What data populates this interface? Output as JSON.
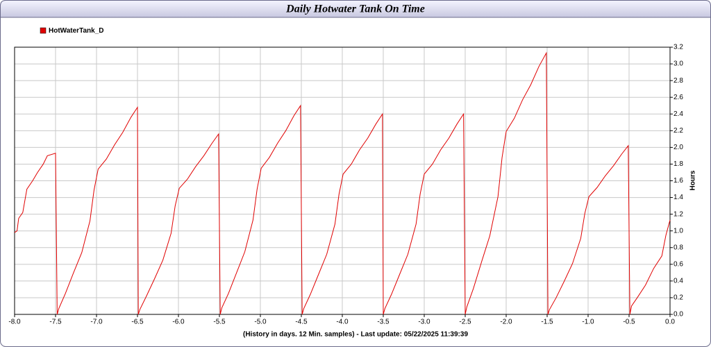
{
  "chart_data": {
    "type": "line",
    "title": "Daily Hotwater Tank On Time",
    "x_label": "(History in days. 12 Min. samples) - Last update: 05/22/2025 11:39:39",
    "y_label": "Hours",
    "xlim": [
      -8,
      0
    ],
    "ylim": [
      0,
      3.2
    ],
    "xticks": [
      {
        "value": -8,
        "label": "-8.0"
      },
      {
        "value": -7.5,
        "label": "-7.5"
      },
      {
        "value": -7,
        "label": "-7.0"
      },
      {
        "value": -6.5,
        "label": "-6.5"
      },
      {
        "value": -6,
        "label": "-6.0"
      },
      {
        "value": -5.5,
        "label": "-5.5"
      },
      {
        "value": -5,
        "label": "-5.0"
      },
      {
        "value": -4.5,
        "label": "-4.5"
      },
      {
        "value": -4,
        "label": "-4.0"
      },
      {
        "value": -3.5,
        "label": "-3.5"
      },
      {
        "value": -3,
        "label": "-3.0"
      },
      {
        "value": -2.5,
        "label": "-2.5"
      },
      {
        "value": -2,
        "label": "-2.0"
      },
      {
        "value": -1.5,
        "label": "-1.5"
      },
      {
        "value": -1,
        "label": "-1.0"
      },
      {
        "value": -0.5,
        "label": "-0.5"
      },
      {
        "value": 0,
        "label": "0.0"
      }
    ],
    "yticks": [
      {
        "value": 0,
        "label": "0.0"
      },
      {
        "value": 0.2,
        "label": "0.2"
      },
      {
        "value": 0.4,
        "label": "0.4"
      },
      {
        "value": 0.6,
        "label": "0.6"
      },
      {
        "value": 0.8,
        "label": "0.8"
      },
      {
        "value": 1,
        "label": "1.0"
      },
      {
        "value": 1.2,
        "label": "1.2"
      },
      {
        "value": 1.4,
        "label": "1.4"
      },
      {
        "value": 1.6,
        "label": "1.6"
      },
      {
        "value": 1.8,
        "label": "1.8"
      },
      {
        "value": 2,
        "label": "2.0"
      },
      {
        "value": 2.2,
        "label": "2.2"
      },
      {
        "value": 2.4,
        "label": "2.4"
      },
      {
        "value": 2.6,
        "label": "2.6"
      },
      {
        "value": 2.8,
        "label": "2.8"
      },
      {
        "value": 3,
        "label": "3.0"
      },
      {
        "value": 3.2,
        "label": "3.2"
      }
    ],
    "grid": true,
    "legend": "top-left",
    "x": [
      -8,
      -7.97,
      -7.95,
      -7.9,
      -7.85,
      -7.78,
      -7.72,
      -7.65,
      -7.6,
      -7.5,
      -7.48,
      -7.46,
      -7.38,
      -7.28,
      -7.18,
      -7.08,
      -7.03,
      -6.98,
      -6.88,
      -6.78,
      -6.68,
      -6.58,
      -6.5,
      -6.49,
      -6.47,
      -6.39,
      -6.29,
      -6.19,
      -6.09,
      -6.04,
      -5.99,
      -5.89,
      -5.79,
      -5.69,
      -5.59,
      -5.51,
      -5.49,
      -5.47,
      -5.39,
      -5.29,
      -5.19,
      -5.09,
      -5.04,
      -4.99,
      -4.89,
      -4.79,
      -4.69,
      -4.59,
      -4.51,
      -4.49,
      -4.47,
      -4.39,
      -4.29,
      -4.19,
      -4.09,
      -4.04,
      -3.99,
      -3.89,
      -3.79,
      -3.69,
      -3.59,
      -3.51,
      -3.5,
      -3.48,
      -3.4,
      -3.3,
      -3.2,
      -3.1,
      -3.05,
      -3,
      -2.9,
      -2.8,
      -2.7,
      -2.6,
      -2.52,
      -2.5,
      -2.48,
      -2.4,
      -2.3,
      -2.2,
      -2.1,
      -2.05,
      -2,
      -1.9,
      -1.8,
      -1.7,
      -1.6,
      -1.51,
      -1.49,
      -1.47,
      -1.39,
      -1.29,
      -1.19,
      -1.09,
      -1.04,
      -0.99,
      -0.89,
      -0.79,
      -0.69,
      -0.59,
      -0.51,
      -0.49,
      -0.47,
      -0.4,
      -0.3,
      -0.2,
      -0.1,
      -0.05,
      0
    ],
    "series": [
      {
        "name": "HotWaterTank_D",
        "color": "#e00000",
        "values": [
          0.98,
          1.0,
          1.15,
          1.22,
          1.5,
          1.6,
          1.7,
          1.8,
          1.9,
          1.93,
          0,
          0.07,
          0.25,
          0.5,
          0.74,
          1.12,
          1.49,
          1.74,
          1.86,
          2.03,
          2.18,
          2.36,
          2.48,
          0,
          0.06,
          0.22,
          0.43,
          0.65,
          0.97,
          1.3,
          1.51,
          1.62,
          1.77,
          1.9,
          2.05,
          2.16,
          0,
          0.08,
          0.25,
          0.5,
          0.75,
          1.13,
          1.5,
          1.75,
          1.88,
          2.05,
          2.2,
          2.38,
          2.5,
          0,
          0.07,
          0.24,
          0.48,
          0.72,
          1.08,
          1.44,
          1.68,
          1.8,
          1.97,
          2.11,
          2.28,
          2.4,
          0,
          0.07,
          0.24,
          0.48,
          0.72,
          1.08,
          1.44,
          1.68,
          1.8,
          1.97,
          2.11,
          2.28,
          2.4,
          0,
          0.09,
          0.31,
          0.63,
          0.94,
          1.41,
          1.88,
          2.19,
          2.35,
          2.57,
          2.75,
          2.97,
          3.13,
          0,
          0.06,
          0.2,
          0.4,
          0.61,
          0.91,
          1.21,
          1.41,
          1.52,
          1.66,
          1.78,
          1.92,
          2.02,
          0,
          0.1,
          0.2,
          0.35,
          0.55,
          0.7,
          0.95,
          1.13
        ]
      }
    ]
  }
}
